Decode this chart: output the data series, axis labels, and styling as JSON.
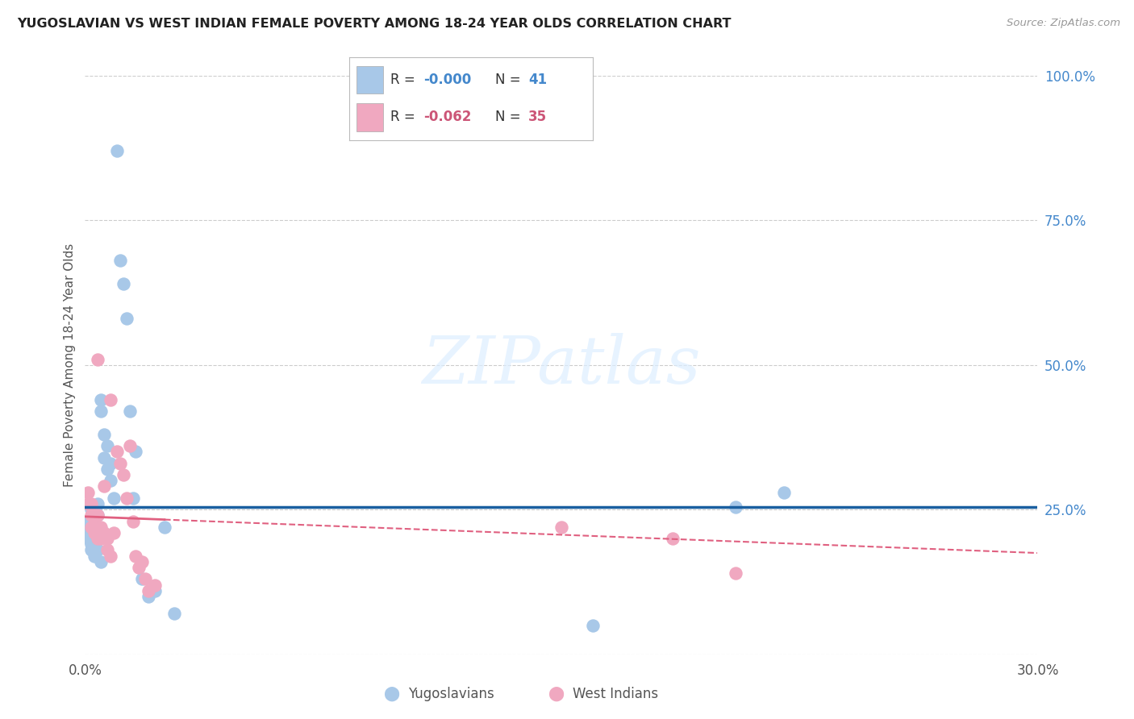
{
  "title": "YUGOSLAVIAN VS WEST INDIAN FEMALE POVERTY AMONG 18-24 YEAR OLDS CORRELATION CHART",
  "source": "Source: ZipAtlas.com",
  "ylabel": "Female Poverty Among 18-24 Year Olds",
  "xlim": [
    0.0,
    0.3
  ],
  "ylim": [
    0.0,
    1.0
  ],
  "blue_color": "#a8c8e8",
  "pink_color": "#f0a8c0",
  "blue_line_color": "#1a5fa0",
  "pink_line_color": "#e06080",
  "watermark_color": "#ddeeff",
  "watermark": "ZIPatlas",
  "legend_r_blue": "-0.000",
  "legend_n_blue": "41",
  "legend_r_pink": "-0.062",
  "legend_n_pink": "35",
  "accent_blue": "#4488cc",
  "accent_pink": "#cc5577",
  "background_color": "#ffffff",
  "grid_color": "#cccccc",
  "blue_trend_y": 0.255,
  "pink_trend_start_y": 0.238,
  "pink_trend_end_y": 0.175,
  "blue_x": [
    0.001,
    0.001,
    0.001,
    0.002,
    0.002,
    0.002,
    0.002,
    0.003,
    0.003,
    0.003,
    0.003,
    0.003,
    0.004,
    0.004,
    0.004,
    0.004,
    0.005,
    0.005,
    0.005,
    0.006,
    0.006,
    0.007,
    0.007,
    0.008,
    0.008,
    0.009,
    0.01,
    0.011,
    0.012,
    0.013,
    0.014,
    0.015,
    0.016,
    0.018,
    0.02,
    0.022,
    0.025,
    0.028,
    0.16,
    0.205,
    0.22
  ],
  "blue_y": [
    0.21,
    0.23,
    0.2,
    0.22,
    0.19,
    0.18,
    0.25,
    0.19,
    0.22,
    0.17,
    0.25,
    0.22,
    0.18,
    0.21,
    0.24,
    0.26,
    0.16,
    0.44,
    0.42,
    0.38,
    0.34,
    0.36,
    0.32,
    0.33,
    0.3,
    0.27,
    0.87,
    0.68,
    0.64,
    0.58,
    0.42,
    0.27,
    0.35,
    0.13,
    0.1,
    0.11,
    0.22,
    0.07,
    0.05,
    0.255,
    0.28
  ],
  "pink_x": [
    0.001,
    0.001,
    0.002,
    0.002,
    0.002,
    0.003,
    0.003,
    0.003,
    0.004,
    0.004,
    0.004,
    0.005,
    0.005,
    0.006,
    0.006,
    0.007,
    0.007,
    0.008,
    0.008,
    0.009,
    0.01,
    0.011,
    0.012,
    0.013,
    0.014,
    0.015,
    0.016,
    0.017,
    0.018,
    0.019,
    0.02,
    0.022,
    0.15,
    0.185,
    0.205
  ],
  "pink_y": [
    0.28,
    0.26,
    0.24,
    0.26,
    0.22,
    0.21,
    0.24,
    0.22,
    0.2,
    0.24,
    0.51,
    0.22,
    0.2,
    0.21,
    0.29,
    0.18,
    0.2,
    0.17,
    0.44,
    0.21,
    0.35,
    0.33,
    0.31,
    0.27,
    0.36,
    0.23,
    0.17,
    0.15,
    0.16,
    0.13,
    0.11,
    0.12,
    0.22,
    0.2,
    0.14
  ]
}
